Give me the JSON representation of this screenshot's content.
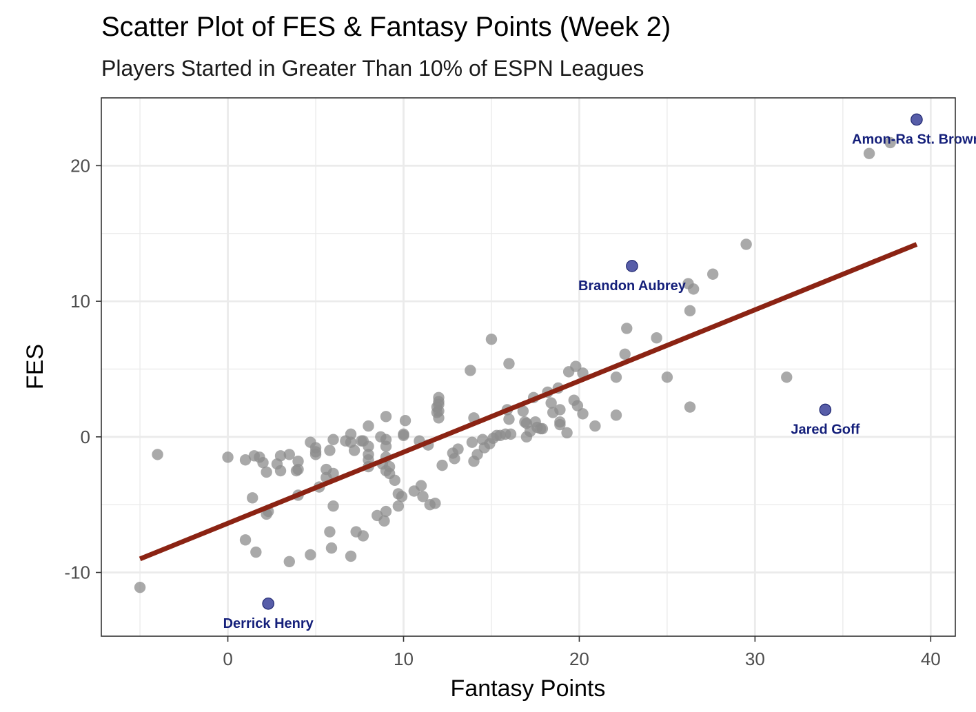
{
  "chart_data": {
    "type": "scatter",
    "title": "Scatter Plot of FES & Fantasy Points (Week 2)",
    "subtitle": "Players Started in Greater Than 10% of ESPN Leagues",
    "xlabel": "Fantasy Points",
    "ylabel": "FES",
    "xlim": [
      -7.2,
      41.4
    ],
    "ylim": [
      -14.7,
      25.0
    ],
    "xticks": [
      0,
      10,
      20,
      30,
      40
    ],
    "yticks": [
      -10,
      0,
      10,
      20
    ],
    "xtick_labels": [
      "0",
      "10",
      "20",
      "30",
      "40"
    ],
    "ytick_labels": [
      "-10",
      "0",
      "10",
      "20"
    ],
    "grid": true,
    "colors": {
      "points": "#8c8c8c",
      "highlight": "#3a4199",
      "highlight_label": "#141f7a",
      "trend": "#8b2313",
      "grid": "#ebebeb",
      "panel_border": "#333333"
    },
    "trend_line": {
      "x": [
        -5.0,
        39.2
      ],
      "y": [
        -9.0,
        14.2
      ]
    },
    "points": [
      {
        "x": -5.0,
        "y": -11.1
      },
      {
        "x": -4.0,
        "y": -1.3
      },
      {
        "x": 0.0,
        "y": -1.5
      },
      {
        "x": 1.0,
        "y": -1.7
      },
      {
        "x": 1.0,
        "y": -7.6
      },
      {
        "x": 1.4,
        "y": -4.5
      },
      {
        "x": 1.5,
        "y": -1.4
      },
      {
        "x": 1.6,
        "y": -8.5
      },
      {
        "x": 1.8,
        "y": -1.5
      },
      {
        "x": 2.0,
        "y": -1.9
      },
      {
        "x": 2.2,
        "y": -2.6
      },
      {
        "x": 2.2,
        "y": -5.7
      },
      {
        "x": 2.3,
        "y": -5.5
      },
      {
        "x": 2.8,
        "y": -2.0
      },
      {
        "x": 3.0,
        "y": -1.4
      },
      {
        "x": 3.0,
        "y": -2.5
      },
      {
        "x": 3.5,
        "y": -1.3
      },
      {
        "x": 3.5,
        "y": -9.2
      },
      {
        "x": 3.9,
        "y": -2.5
      },
      {
        "x": 4.0,
        "y": -1.8
      },
      {
        "x": 4.0,
        "y": -2.4
      },
      {
        "x": 4.0,
        "y": -4.3
      },
      {
        "x": 4.7,
        "y": -0.4
      },
      {
        "x": 4.7,
        "y": -8.7
      },
      {
        "x": 5.0,
        "y": -0.8
      },
      {
        "x": 5.0,
        "y": -1.3
      },
      {
        "x": 5.0,
        "y": -1.1
      },
      {
        "x": 5.2,
        "y": -3.7
      },
      {
        "x": 5.6,
        "y": -2.4
      },
      {
        "x": 5.6,
        "y": -3.0
      },
      {
        "x": 5.8,
        "y": -1.0
      },
      {
        "x": 5.8,
        "y": -7.0
      },
      {
        "x": 5.9,
        "y": -8.2
      },
      {
        "x": 6.0,
        "y": -0.2
      },
      {
        "x": 6.0,
        "y": -2.7
      },
      {
        "x": 6.0,
        "y": -5.1
      },
      {
        "x": 6.7,
        "y": -0.3
      },
      {
        "x": 7.0,
        "y": 0.2
      },
      {
        "x": 7.0,
        "y": -0.4
      },
      {
        "x": 7.0,
        "y": -8.8
      },
      {
        "x": 7.2,
        "y": -1.0
      },
      {
        "x": 7.3,
        "y": -7.0
      },
      {
        "x": 7.6,
        "y": -0.3
      },
      {
        "x": 7.7,
        "y": -0.3
      },
      {
        "x": 7.7,
        "y": -7.3
      },
      {
        "x": 8.0,
        "y": 0.8
      },
      {
        "x": 8.0,
        "y": -0.7
      },
      {
        "x": 8.0,
        "y": -1.3
      },
      {
        "x": 8.0,
        "y": -1.7
      },
      {
        "x": 8.0,
        "y": -2.2
      },
      {
        "x": 8.5,
        "y": -5.8
      },
      {
        "x": 8.7,
        "y": 0.0
      },
      {
        "x": 8.8,
        "y": -2.0
      },
      {
        "x": 9.0,
        "y": 1.5
      },
      {
        "x": 9.0,
        "y": -0.2
      },
      {
        "x": 9.0,
        "y": -0.7
      },
      {
        "x": 9.0,
        "y": -1.5
      },
      {
        "x": 9.0,
        "y": -2.5
      },
      {
        "x": 9.0,
        "y": -5.5
      },
      {
        "x": 8.9,
        "y": -6.2
      },
      {
        "x": 9.2,
        "y": -2.2
      },
      {
        "x": 9.2,
        "y": -2.7
      },
      {
        "x": 9.5,
        "y": -3.2
      },
      {
        "x": 9.7,
        "y": -4.2
      },
      {
        "x": 9.7,
        "y": -5.1
      },
      {
        "x": 9.9,
        "y": -4.4
      },
      {
        "x": 10.0,
        "y": 0.1
      },
      {
        "x": 10.0,
        "y": 0.2
      },
      {
        "x": 10.1,
        "y": 1.2
      },
      {
        "x": 10.6,
        "y": -4.0
      },
      {
        "x": 10.9,
        "y": -0.3
      },
      {
        "x": 11.0,
        "y": -3.6
      },
      {
        "x": 11.1,
        "y": -4.4
      },
      {
        "x": 11.4,
        "y": -0.6
      },
      {
        "x": 11.5,
        "y": -5.0
      },
      {
        "x": 11.8,
        "y": -4.9
      },
      {
        "x": 11.9,
        "y": 2.2
      },
      {
        "x": 11.9,
        "y": 1.8
      },
      {
        "x": 12.0,
        "y": 2.9
      },
      {
        "x": 12.0,
        "y": 2.6
      },
      {
        "x": 12.0,
        "y": 2.4
      },
      {
        "x": 12.0,
        "y": 1.9
      },
      {
        "x": 12.0,
        "y": 1.4
      },
      {
        "x": 12.2,
        "y": -2.1
      },
      {
        "x": 12.8,
        "y": -1.2
      },
      {
        "x": 12.9,
        "y": -1.6
      },
      {
        "x": 13.1,
        "y": -0.9
      },
      {
        "x": 13.8,
        "y": 4.9
      },
      {
        "x": 13.9,
        "y": -0.4
      },
      {
        "x": 14.0,
        "y": 1.4
      },
      {
        "x": 14.0,
        "y": -1.8
      },
      {
        "x": 14.2,
        "y": -1.3
      },
      {
        "x": 14.5,
        "y": -0.2
      },
      {
        "x": 14.6,
        "y": -0.8
      },
      {
        "x": 14.9,
        "y": -0.5
      },
      {
        "x": 15.0,
        "y": 7.2
      },
      {
        "x": 15.1,
        "y": -0.1
      },
      {
        "x": 15.3,
        "y": 0.1
      },
      {
        "x": 15.5,
        "y": 0.1
      },
      {
        "x": 15.8,
        "y": 0.2
      },
      {
        "x": 15.9,
        "y": 2.0
      },
      {
        "x": 16.0,
        "y": 5.4
      },
      {
        "x": 16.0,
        "y": 1.3
      },
      {
        "x": 16.1,
        "y": 0.2
      },
      {
        "x": 16.8,
        "y": 1.9
      },
      {
        "x": 16.9,
        "y": 1.1
      },
      {
        "x": 17.0,
        "y": 1.0
      },
      {
        "x": 17.0,
        "y": 0.0
      },
      {
        "x": 17.2,
        "y": 0.4
      },
      {
        "x": 17.4,
        "y": 2.9
      },
      {
        "x": 17.5,
        "y": 1.1
      },
      {
        "x": 17.6,
        "y": 0.7
      },
      {
        "x": 17.8,
        "y": 0.6
      },
      {
        "x": 17.9,
        "y": 0.6
      },
      {
        "x": 18.2,
        "y": 3.3
      },
      {
        "x": 18.4,
        "y": 2.5
      },
      {
        "x": 18.5,
        "y": 1.8
      },
      {
        "x": 18.8,
        "y": 3.6
      },
      {
        "x": 18.9,
        "y": 2.0
      },
      {
        "x": 18.9,
        "y": 1.1
      },
      {
        "x": 18.9,
        "y": 0.9
      },
      {
        "x": 19.3,
        "y": 0.3
      },
      {
        "x": 19.4,
        "y": 4.8
      },
      {
        "x": 19.7,
        "y": 2.7
      },
      {
        "x": 19.8,
        "y": 5.2
      },
      {
        "x": 19.9,
        "y": 2.3
      },
      {
        "x": 20.2,
        "y": 4.7
      },
      {
        "x": 20.2,
        "y": 1.7
      },
      {
        "x": 20.9,
        "y": 0.8
      },
      {
        "x": 22.1,
        "y": 4.4
      },
      {
        "x": 22.1,
        "y": 1.6
      },
      {
        "x": 22.6,
        "y": 6.1
      },
      {
        "x": 22.7,
        "y": 8.0
      },
      {
        "x": 24.4,
        "y": 7.3
      },
      {
        "x": 25.0,
        "y": 4.4
      },
      {
        "x": 26.2,
        "y": 11.3
      },
      {
        "x": 26.3,
        "y": 9.3
      },
      {
        "x": 26.3,
        "y": 2.2
      },
      {
        "x": 26.5,
        "y": 10.9
      },
      {
        "x": 27.6,
        "y": 12.0
      },
      {
        "x": 29.5,
        "y": 14.2
      },
      {
        "x": 31.8,
        "y": 4.4
      },
      {
        "x": 36.5,
        "y": 20.9
      },
      {
        "x": 37.7,
        "y": 21.7
      }
    ],
    "highlighted": [
      {
        "name": "Amon-Ra St. Brown",
        "x": 39.2,
        "y": 23.4
      },
      {
        "name": "Brandon Aubrey",
        "x": 23.0,
        "y": 12.6
      },
      {
        "name": "Jared Goff",
        "x": 34.0,
        "y": 2.0
      },
      {
        "name": "Derrick Henry",
        "x": 2.3,
        "y": -12.3
      }
    ]
  }
}
